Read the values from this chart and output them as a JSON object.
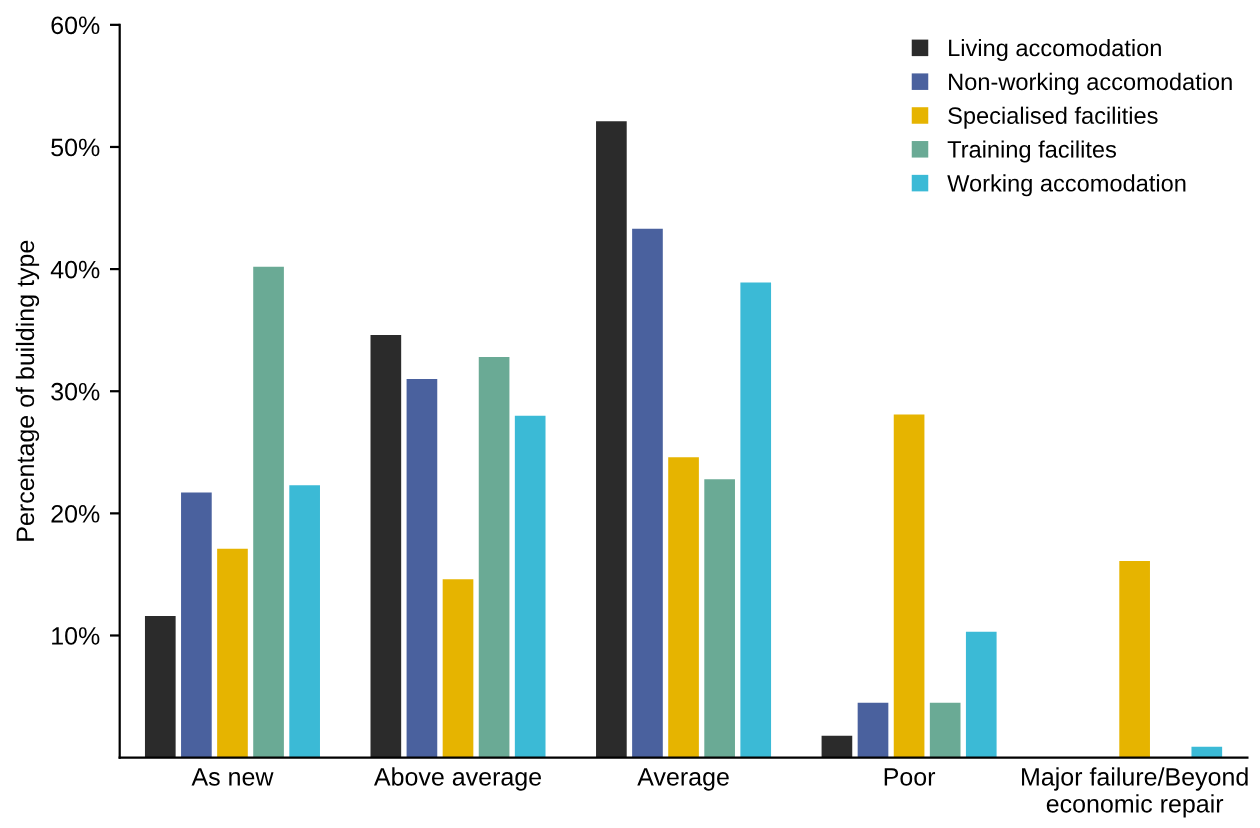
{
  "chart_data": {
    "type": "bar",
    "ylabel": "Percentage of building type",
    "categories": [
      "As new",
      "Above average",
      "Average",
      "Poor",
      "Major failure/Beyond\neconomic repair"
    ],
    "series": [
      {
        "name": "Living accomodation",
        "color": "#2b2b2b",
        "values": [
          11.6,
          34.6,
          52.1,
          1.8,
          null
        ]
      },
      {
        "name": "Non-working accomodation",
        "color": "#4a619e",
        "values": [
          21.7,
          31.0,
          43.3,
          4.5,
          null
        ]
      },
      {
        "name": "Specialised facilities",
        "color": "#e6b400",
        "values": [
          17.1,
          14.6,
          24.6,
          28.1,
          16.1
        ]
      },
      {
        "name": "Training facilites",
        "color": "#6aaa95",
        "values": [
          40.2,
          32.8,
          22.8,
          4.5,
          null
        ]
      },
      {
        "name": "Working accomodation",
        "color": "#3bbad6",
        "values": [
          22.3,
          28.0,
          38.9,
          10.3,
          0.9
        ]
      }
    ],
    "ylim": [
      0,
      60
    ],
    "yticks": [
      {
        "value": 10,
        "label": "10%"
      },
      {
        "value": 20,
        "label": "20%"
      },
      {
        "value": 30,
        "label": "30%"
      },
      {
        "value": 40,
        "label": "40%"
      },
      {
        "value": 50,
        "label": "50%"
      },
      {
        "value": 60,
        "label": "60%"
      }
    ],
    "legend": "top right",
    "grid": false
  }
}
